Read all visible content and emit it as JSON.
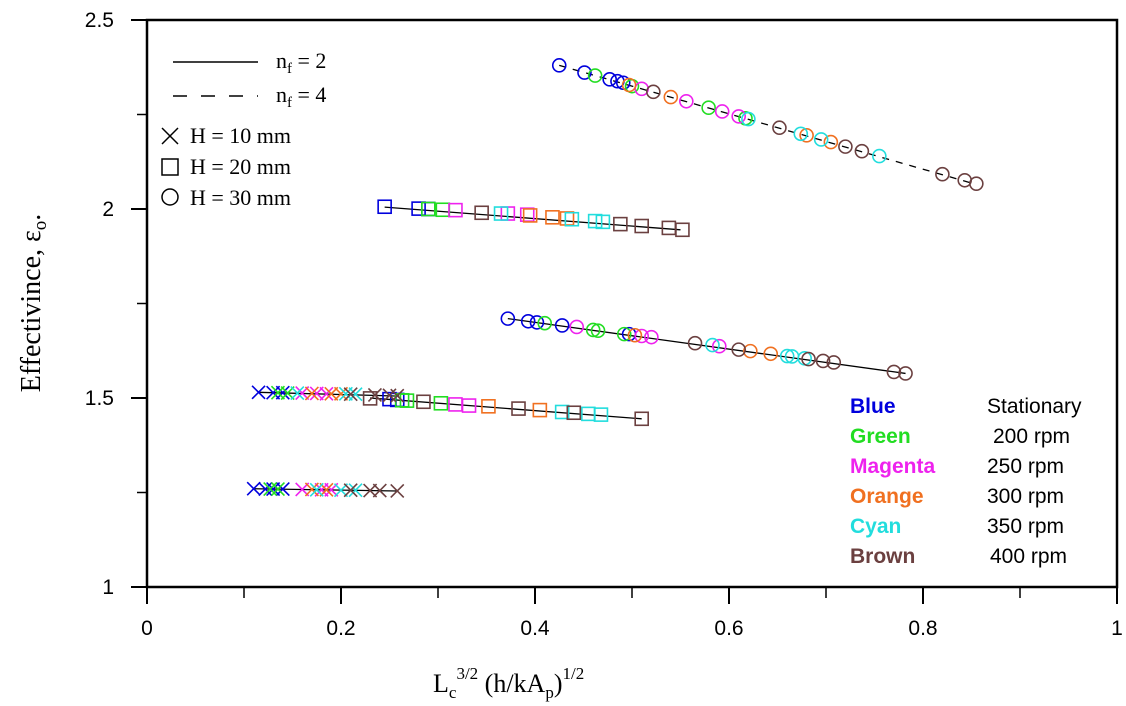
{
  "chart_data": {
    "type": "scatter",
    "title": "",
    "xlabel": "",
    "ylabel": "",
    "xlim": [
      0,
      1
    ],
    "ylim": [
      1,
      2.5
    ],
    "x_ticks": [
      "0",
      "0.2",
      "0.4",
      "0.6",
      "0.8",
      "1"
    ],
    "y_ticks": [
      "1",
      "1.5",
      "2",
      "2.5"
    ],
    "grid": false,
    "axis_title_text": {
      "x": {
        "main": "L",
        "sub1": "c",
        "sup1": "3/2",
        "mid": " (h/kA",
        "sub2": "p",
        "end": ")",
        "sup2": "1/2"
      },
      "y": {
        "main": "Effectivince, ε",
        "sub": "o",
        "end": "."
      }
    },
    "line_legend": [
      {
        "style": "solid",
        "label_main": "n",
        "label_sub": "f",
        "label_end": " = 2"
      },
      {
        "style": "dashed",
        "label_main": "n",
        "label_sub": "f",
        "label_end": " = 4"
      }
    ],
    "marker_legend": [
      {
        "marker": "x",
        "label": "H = 10 mm"
      },
      {
        "marker": "square",
        "label": "H = 20 mm"
      },
      {
        "marker": "circle",
        "label": "H = 30 mm"
      }
    ],
    "color_legend": [
      {
        "name": "Blue",
        "speed": "Stationary",
        "color": "#0000dd"
      },
      {
        "name": "Green",
        "speed": "200 rpm",
        "color": "#22dd22"
      },
      {
        "name": "Magenta",
        "speed": "250 rpm",
        "color": "#ee22ee"
      },
      {
        "name": "Orange",
        "speed": "300 rpm",
        "color": "#f07020"
      },
      {
        "name": "Cyan",
        "speed": "350 rpm",
        "color": "#22dddd"
      },
      {
        "name": "Brown",
        "speed": "400 rpm",
        "color": "#6b4040"
      }
    ],
    "series": [
      {
        "marker": "circle",
        "line": "dashed",
        "fit": [
          [
            0.425,
            2.38
          ],
          [
            0.855,
            2.065
          ]
        ],
        "points": {
          "Blue": [
            [
              0.425,
              2.38
            ],
            [
              0.451,
              2.361
            ],
            [
              0.477,
              2.343
            ],
            [
              0.485,
              2.338
            ],
            [
              0.491,
              2.334
            ]
          ],
          "Green": [
            [
              0.462,
              2.353
            ],
            [
              0.5,
              2.325
            ],
            [
              0.579,
              2.268
            ],
            [
              0.617,
              2.24
            ]
          ],
          "Magenta": [
            [
              0.51,
              2.318
            ],
            [
              0.556,
              2.285
            ],
            [
              0.593,
              2.258
            ],
            [
              0.61,
              2.245
            ]
          ],
          "Orange": [
            [
              0.497,
              2.328
            ],
            [
              0.54,
              2.296
            ],
            [
              0.68,
              2.195
            ],
            [
              0.705,
              2.177
            ]
          ],
          "Cyan": [
            [
              0.62,
              2.238
            ],
            [
              0.674,
              2.199
            ],
            [
              0.695,
              2.184
            ],
            [
              0.755,
              2.14
            ]
          ],
          "Brown": [
            [
              0.522,
              2.31
            ],
            [
              0.652,
              2.215
            ],
            [
              0.72,
              2.165
            ],
            [
              0.737,
              2.153
            ],
            [
              0.82,
              2.092
            ],
            [
              0.843,
              2.076
            ],
            [
              0.855,
              2.067
            ]
          ]
        }
      },
      {
        "marker": "square",
        "line": "solid",
        "fit": [
          [
            0.245,
            2.005
          ],
          [
            0.55,
            1.945
          ]
        ],
        "points": {
          "Blue": [
            [
              0.245,
              2.006
            ],
            [
              0.28,
              2.001
            ],
            [
              0.29,
              2.0
            ]
          ],
          "Green": [
            [
              0.29,
              2.0
            ],
            [
              0.305,
              1.998
            ]
          ],
          "Magenta": [
            [
              0.318,
              1.997
            ],
            [
              0.372,
              1.988
            ],
            [
              0.392,
              1.985
            ]
          ],
          "Orange": [
            [
              0.395,
              1.983
            ],
            [
              0.418,
              1.978
            ],
            [
              0.433,
              1.975
            ]
          ],
          "Cyan": [
            [
              0.365,
              1.988
            ],
            [
              0.438,
              1.973
            ],
            [
              0.462,
              1.968
            ],
            [
              0.47,
              1.966
            ]
          ],
          "Brown": [
            [
              0.345,
              1.99
            ],
            [
              0.488,
              1.96
            ],
            [
              0.51,
              1.955
            ],
            [
              0.538,
              1.95
            ],
            [
              0.552,
              1.945
            ]
          ]
        }
      },
      {
        "marker": "circle",
        "line": "solid",
        "fit": [
          [
            0.372,
            1.71
          ],
          [
            0.782,
            1.565
          ]
        ],
        "points": {
          "Blue": [
            [
              0.372,
              1.71
            ],
            [
              0.393,
              1.703
            ],
            [
              0.402,
              1.7
            ],
            [
              0.428,
              1.692
            ],
            [
              0.497,
              1.669
            ]
          ],
          "Green": [
            [
              0.41,
              1.698
            ],
            [
              0.46,
              1.68
            ],
            [
              0.465,
              1.678
            ],
            [
              0.492,
              1.669
            ]
          ],
          "Magenta": [
            [
              0.443,
              1.688
            ],
            [
              0.51,
              1.664
            ],
            [
              0.52,
              1.661
            ],
            [
              0.59,
              1.637
            ]
          ],
          "Orange": [
            [
              0.503,
              1.666
            ],
            [
              0.622,
              1.624
            ],
            [
              0.643,
              1.617
            ]
          ],
          "Cyan": [
            [
              0.583,
              1.64
            ],
            [
              0.66,
              1.611
            ],
            [
              0.665,
              1.61
            ],
            [
              0.678,
              1.605
            ]
          ],
          "Brown": [
            [
              0.565,
              1.645
            ],
            [
              0.61,
              1.628
            ],
            [
              0.682,
              1.603
            ],
            [
              0.697,
              1.598
            ],
            [
              0.708,
              1.594
            ],
            [
              0.77,
              1.569
            ],
            [
              0.782,
              1.565
            ]
          ]
        }
      },
      {
        "marker": "square",
        "line": "solid",
        "fit": [
          [
            0.23,
            1.5
          ],
          [
            0.51,
            1.445
          ]
        ],
        "points": {
          "Blue": [
            [
              0.25,
              1.497
            ],
            [
              0.258,
              1.495
            ]
          ],
          "Green": [
            [
              0.263,
              1.494
            ],
            [
              0.268,
              1.493
            ],
            [
              0.303,
              1.486
            ]
          ],
          "Magenta": [
            [
              0.318,
              1.483
            ],
            [
              0.332,
              1.48
            ]
          ],
          "Orange": [
            [
              0.352,
              1.478
            ],
            [
              0.405,
              1.468
            ]
          ],
          "Cyan": [
            [
              0.428,
              1.463
            ],
            [
              0.455,
              1.458
            ],
            [
              0.468,
              1.456
            ]
          ],
          "Brown": [
            [
              0.23,
              1.499
            ],
            [
              0.285,
              1.49
            ],
            [
              0.383,
              1.472
            ],
            [
              0.44,
              1.461
            ],
            [
              0.51,
              1.445
            ]
          ]
        }
      },
      {
        "marker": "x",
        "line": "solid",
        "fit": [
          [
            0.115,
            1.515
          ],
          [
            0.26,
            1.505
          ]
        ],
        "points": {
          "Blue": [
            [
              0.115,
              1.515
            ],
            [
              0.13,
              1.514
            ],
            [
              0.14,
              1.514
            ]
          ],
          "Green": [
            [
              0.135,
              1.514
            ],
            [
              0.145,
              1.513
            ]
          ],
          "Magenta": [
            [
              0.16,
              1.513
            ],
            [
              0.175,
              1.512
            ],
            [
              0.185,
              1.511
            ]
          ],
          "Orange": [
            [
              0.17,
              1.512
            ],
            [
              0.19,
              1.511
            ],
            [
              0.2,
              1.511
            ]
          ],
          "Cyan": [
            [
              0.155,
              1.513
            ],
            [
              0.205,
              1.511
            ],
            [
              0.215,
              1.51
            ]
          ],
          "Brown": [
            [
              0.21,
              1.51
            ],
            [
              0.235,
              1.508
            ],
            [
              0.25,
              1.507
            ],
            [
              0.258,
              1.506
            ]
          ]
        }
      },
      {
        "marker": "x",
        "line": "solid",
        "fit": [
          [
            0.11,
            1.26
          ],
          [
            0.258,
            1.254
          ]
        ],
        "points": {
          "Blue": [
            [
              0.11,
              1.26
            ],
            [
              0.122,
              1.259
            ],
            [
              0.13,
              1.259
            ],
            [
              0.14,
              1.259
            ]
          ],
          "Green": [
            [
              0.127,
              1.259
            ],
            [
              0.135,
              1.259
            ]
          ],
          "Magenta": [
            [
              0.16,
              1.258
            ],
            [
              0.18,
              1.257
            ],
            [
              0.19,
              1.257
            ]
          ],
          "Orange": [
            [
              0.17,
              1.258
            ],
            [
              0.185,
              1.257
            ]
          ],
          "Cyan": [
            [
              0.175,
              1.257
            ],
            [
              0.2,
              1.256
            ],
            [
              0.215,
              1.256
            ]
          ],
          "Brown": [
            [
              0.21,
              1.256
            ],
            [
              0.23,
              1.255
            ],
            [
              0.24,
              1.255
            ],
            [
              0.258,
              1.254
            ]
          ]
        }
      }
    ]
  }
}
